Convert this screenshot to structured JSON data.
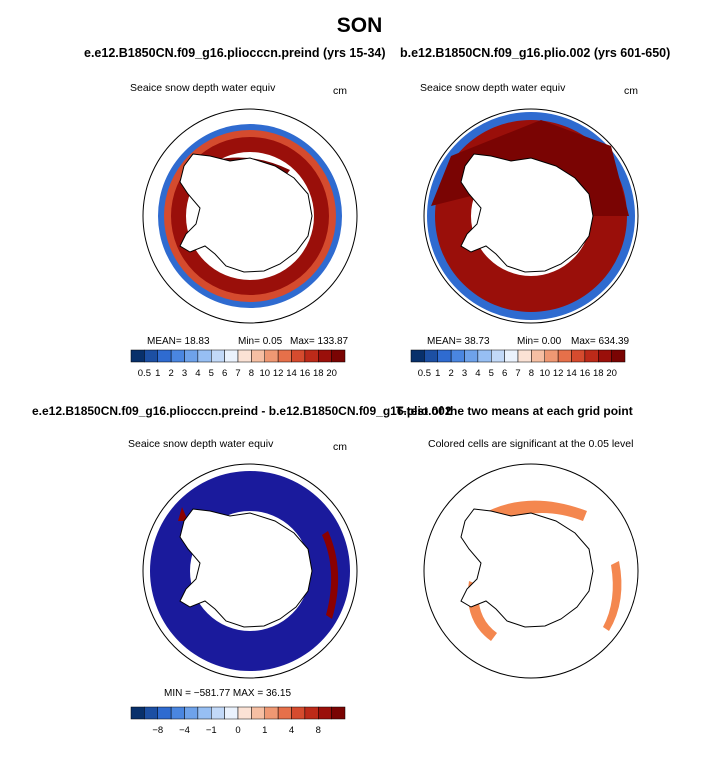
{
  "season": "SON",
  "panels": [
    {
      "title": "e.e12.B1850CN.f09_g16.pliocccn.preind (yrs 15-34)",
      "variable": "Seaice snow depth water equiv",
      "units": "cm",
      "stats": {
        "mean": "MEAN=   18.83",
        "min": "Min=    0.05",
        "max": "Max=  133.87"
      }
    },
    {
      "title": "b.e12.B1850CN.f09_g16.plio.002 (yrs 601-650)",
      "variable": "Seaice snow depth water equiv",
      "units": "cm",
      "stats": {
        "mean": "MEAN=   38.73",
        "min": "Min=    0.00",
        "max": "Max=  634.39"
      }
    },
    {
      "title": "e.e12.B1850CN.f09_g16.pliocccn.preind - b.e12.B1850CN.f09_g16.plio.002",
      "variable": "Seaice snow depth water equiv",
      "units": "cm",
      "stats": {
        "minmax": "MIN = −581.77  MAX =   36.15"
      }
    },
    {
      "title": "T-test of the two means at each grid point",
      "note": "Colored cells are significant at the 0.05 level"
    }
  ],
  "colors": {
    "palette": [
      "#08306b",
      "#1c4fa3",
      "#2f6bd0",
      "#4a86e0",
      "#6ea2ea",
      "#97bff3",
      "#c2d9f8",
      "#eaf2fd",
      "#fbe2d5",
      "#f6bfa3",
      "#ef9873",
      "#e6704a",
      "#d54b2e",
      "#bd2a19",
      "#9a0f0a",
      "#7a0403"
    ],
    "deep_blue": "#1a1a9c",
    "strong_red": "#8b0000",
    "sig_orange": "#f4874f"
  },
  "chart_data": [
    {
      "type": "heatmap",
      "title": "e.e12.B1850CN.f09_g16.pliocccn.preind (yrs 15-34)",
      "variable": "Seaice snow depth water equiv",
      "units": "cm",
      "colorbar_labels": [
        "0.5",
        "1",
        "2",
        "3",
        "4",
        "5",
        "6",
        "7",
        "8",
        "10",
        "12",
        "14",
        "16",
        "18",
        "20"
      ],
      "mean": 18.83,
      "min": 0.05,
      "max": 133.87
    },
    {
      "type": "heatmap",
      "title": "b.e12.B1850CN.f09_g16.plio.002 (yrs 601-650)",
      "variable": "Seaice snow depth water equiv",
      "units": "cm",
      "colorbar_labels": [
        "0.5",
        "1",
        "2",
        "3",
        "4",
        "5",
        "6",
        "7",
        "8",
        "10",
        "12",
        "14",
        "16",
        "18",
        "20"
      ],
      "mean": 38.73,
      "min": 0.0,
      "max": 634.39
    },
    {
      "type": "heatmap",
      "title": "e.e12.B1850CN.f09_g16.pliocccn.preind - b.e12.B1850CN.f09_g16.plio.002",
      "variable": "Seaice snow depth water equiv",
      "units": "cm",
      "colorbar_labels": [
        "−8",
        "−4",
        "−1",
        "0",
        "1",
        "4",
        "8"
      ],
      "min": -581.77,
      "max": 36.15
    },
    {
      "type": "heatmap",
      "title": "T-test of the two means at each grid point",
      "note": "Colored cells are significant at the 0.05 level",
      "significance_level": 0.05
    }
  ]
}
